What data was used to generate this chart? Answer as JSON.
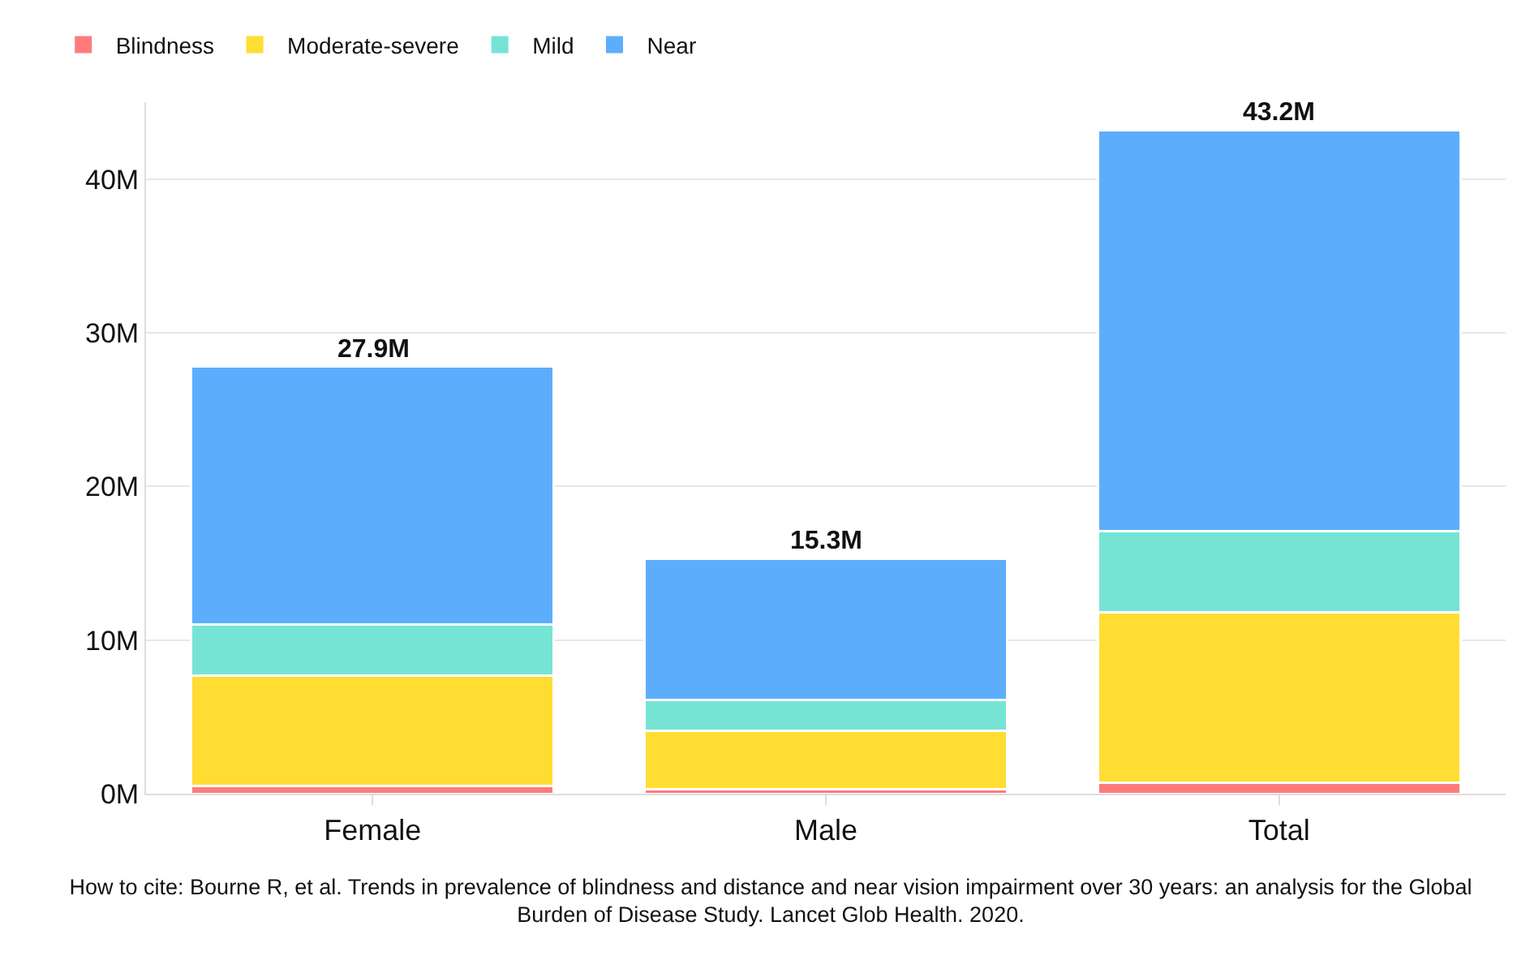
{
  "chart_data": {
    "type": "bar",
    "stacked": true,
    "categories": [
      "Female",
      "Male",
      "Total"
    ],
    "series": [
      {
        "name": "Blindness",
        "color": "#ff7b7b",
        "values": [
          0.5,
          0.3,
          0.7
        ]
      },
      {
        "name": "Moderate-severe",
        "color": "#ffdd33",
        "values": [
          7.2,
          3.8,
          11.1
        ]
      },
      {
        "name": "Mild",
        "color": "#76e4d4",
        "values": [
          3.3,
          2.0,
          5.3
        ]
      },
      {
        "name": "Near",
        "color": "#5caefd",
        "values": [
          16.8,
          9.2,
          26.1
        ]
      }
    ],
    "totals": [
      "27.9M",
      "15.3M",
      "43.2M"
    ],
    "ylim": [
      0,
      45
    ],
    "yticks": [
      {
        "value": 0,
        "label": "0M"
      },
      {
        "value": 10,
        "label": "10M"
      },
      {
        "value": 20,
        "label": "20M"
      },
      {
        "value": 30,
        "label": "30M"
      },
      {
        "value": 40,
        "label": "40M"
      }
    ],
    "grid": "y",
    "legend": "top left",
    "annotations": [
      "How to cite: Bourne R, et al. Trends in prevalence of blindness and distance and near vision impairment over 30 years: an analysis for the Global Burden of Disease Study. Lancet Glob Health. 2020."
    ]
  }
}
